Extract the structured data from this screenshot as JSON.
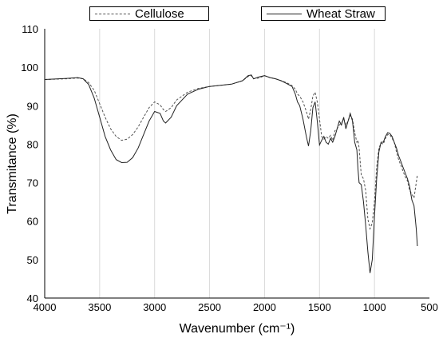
{
  "chart_data": {
    "type": "line",
    "xlabel": "Wavenumber (cm⁻¹)",
    "ylabel": "Transmitance (%)",
    "xlim": [
      4000,
      500
    ],
    "ylim": [
      40,
      110
    ],
    "x_ticks": [
      "4000",
      "3500",
      "3000",
      "2500",
      "2000",
      "1500",
      "1000",
      "500"
    ],
    "y_ticks": [
      "40",
      "50",
      "60",
      "70",
      "80",
      "90",
      "100",
      "110"
    ],
    "grid": "vertical",
    "legend_position": "top",
    "series": [
      {
        "name": "Cellulose",
        "style": "dashed",
        "color": "#555555",
        "x": [
          4000,
          3800,
          3700,
          3650,
          3600,
          3550,
          3500,
          3450,
          3400,
          3350,
          3300,
          3250,
          3200,
          3150,
          3100,
          3050,
          3000,
          2950,
          2920,
          2900,
          2850,
          2800,
          2700,
          2600,
          2500,
          2400,
          2300,
          2200,
          2150,
          2120,
          2100,
          2050,
          2000,
          1950,
          1900,
          1850,
          1800,
          1750,
          1720,
          1700,
          1680,
          1650,
          1620,
          1600,
          1580,
          1560,
          1540,
          1520,
          1500,
          1480,
          1460,
          1440,
          1420,
          1400,
          1380,
          1360,
          1340,
          1320,
          1300,
          1280,
          1260,
          1240,
          1220,
          1200,
          1180,
          1160,
          1150,
          1140,
          1120,
          1100,
          1080,
          1060,
          1040,
          1020,
          1000,
          980,
          960,
          940,
          920,
          900,
          880,
          860,
          840,
          820,
          800,
          780,
          760,
          740,
          720,
          700,
          680,
          660,
          640,
          620,
          610
        ],
        "y": [
          96.8,
          97.0,
          97.2,
          97.0,
          96.0,
          94.0,
          90.5,
          87.0,
          84.0,
          82.0,
          81.0,
          81.3,
          82.5,
          84.5,
          87.0,
          89.5,
          91.0,
          90.2,
          89.0,
          88.5,
          89.5,
          91.5,
          93.5,
          94.5,
          95.0,
          95.3,
          95.6,
          96.5,
          97.6,
          97.8,
          97.0,
          97.2,
          97.8,
          97.3,
          97.0,
          96.5,
          96.0,
          95.2,
          94.3,
          93.0,
          92.5,
          91.0,
          88.5,
          86.5,
          89.0,
          92.5,
          93.5,
          91.0,
          86.5,
          82.0,
          81.3,
          82.0,
          81.5,
          82.3,
          81.0,
          83.5,
          84.0,
          85.0,
          85.5,
          86.5,
          85.0,
          86.0,
          87.5,
          86.5,
          83.0,
          80.5,
          81.0,
          79.0,
          72.0,
          71.0,
          68.0,
          60.5,
          58.0,
          59.5,
          65.0,
          74.0,
          79.0,
          80.3,
          80.0,
          81.5,
          82.5,
          82.5,
          81.5,
          80.5,
          78.0,
          76.0,
          74.5,
          73.0,
          71.5,
          70.5,
          68.0,
          67.0,
          66.0,
          70.0,
          72.0
        ]
      },
      {
        "name": "Wheat Straw",
        "style": "solid",
        "color": "#222222",
        "x": [
          4000,
          3800,
          3700,
          3650,
          3600,
          3550,
          3500,
          3450,
          3400,
          3350,
          3300,
          3250,
          3200,
          3150,
          3100,
          3050,
          3000,
          2950,
          2920,
          2900,
          2850,
          2800,
          2700,
          2600,
          2500,
          2400,
          2300,
          2200,
          2150,
          2120,
          2100,
          2050,
          2000,
          1950,
          1900,
          1850,
          1800,
          1750,
          1720,
          1700,
          1680,
          1650,
          1620,
          1600,
          1580,
          1560,
          1540,
          1520,
          1500,
          1480,
          1460,
          1440,
          1420,
          1400,
          1380,
          1360,
          1340,
          1320,
          1300,
          1280,
          1260,
          1240,
          1220,
          1200,
          1180,
          1160,
          1150,
          1140,
          1120,
          1100,
          1080,
          1060,
          1040,
          1020,
          1000,
          980,
          960,
          940,
          920,
          900,
          880,
          860,
          840,
          820,
          800,
          780,
          760,
          740,
          720,
          700,
          680,
          660,
          640,
          620,
          610
        ],
        "y": [
          96.8,
          97.1,
          97.3,
          97.0,
          95.5,
          92.0,
          87.0,
          82.0,
          78.5,
          76.0,
          75.2,
          75.3,
          76.5,
          79.0,
          82.5,
          86.0,
          88.5,
          88.0,
          86.0,
          85.5,
          87.0,
          90.0,
          93.0,
          94.3,
          95.0,
          95.3,
          95.6,
          96.5,
          97.8,
          98.0,
          97.0,
          97.5,
          97.8,
          97.3,
          97.0,
          96.5,
          95.8,
          95.0,
          93.0,
          91.0,
          90.0,
          86.5,
          82.0,
          79.5,
          83.5,
          89.5,
          91.0,
          86.0,
          79.8,
          81.0,
          82.0,
          80.5,
          80.0,
          81.5,
          80.5,
          82.0,
          84.0,
          86.0,
          85.0,
          87.0,
          84.0,
          86.0,
          88.0,
          86.0,
          80.5,
          78.5,
          73.5,
          70.0,
          69.5,
          65.0,
          59.0,
          52.0,
          46.5,
          50.0,
          61.0,
          71.0,
          78.0,
          80.5,
          80.5,
          82.0,
          83.0,
          82.8,
          82.0,
          80.5,
          79.0,
          77.0,
          75.5,
          74.0,
          72.5,
          71.0,
          69.0,
          65.5,
          64.0,
          58.0,
          53.5
        ]
      }
    ]
  }
}
